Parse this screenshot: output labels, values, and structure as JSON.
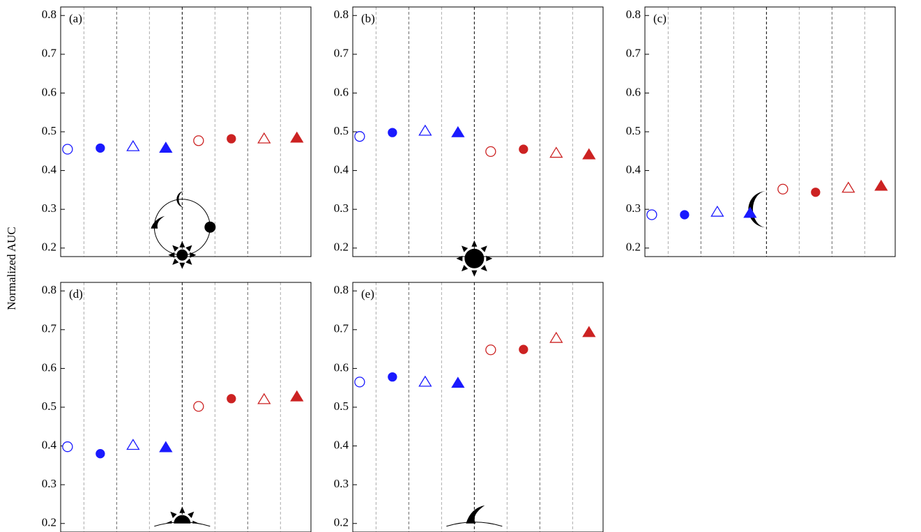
{
  "ylabel": "Normalized AUC",
  "chart_data": [
    {
      "type": "scatter",
      "label": "(a)",
      "x": [
        1,
        2,
        3,
        4,
        5,
        6,
        7,
        8
      ],
      "values": [
        0.455,
        0.458,
        0.462,
        0.458,
        0.477,
        0.482,
        0.482,
        0.484
      ],
      "colors": [
        "#1a1aff",
        "#1a1aff",
        "#1a1aff",
        "#1a1aff",
        "#cc2222",
        "#cc2222",
        "#cc2222",
        "#cc2222"
      ],
      "markers": [
        "circle-open",
        "circle",
        "triangle-open",
        "triangle",
        "circle-open",
        "circle",
        "triangle-open",
        "triangle"
      ],
      "xlim": [
        0.79,
        8.43
      ],
      "ylim": [
        0.178,
        0.822
      ],
      "yticks": [
        0.2,
        0.3,
        0.4,
        0.5,
        0.6,
        0.7,
        0.8
      ]
    },
    {
      "type": "scatter",
      "label": "(b)",
      "x": [
        1,
        2,
        3,
        4,
        5,
        6,
        7,
        8
      ],
      "values": [
        0.488,
        0.498,
        0.502,
        0.498,
        0.449,
        0.455,
        0.445,
        0.441
      ],
      "colors": [
        "#1a1aff",
        "#1a1aff",
        "#1a1aff",
        "#1a1aff",
        "#cc2222",
        "#cc2222",
        "#cc2222",
        "#cc2222"
      ],
      "markers": [
        "circle-open",
        "circle",
        "triangle-open",
        "triangle",
        "circle-open",
        "circle",
        "triangle-open",
        "triangle"
      ],
      "xlim": [
        0.79,
        8.43
      ],
      "ylim": [
        0.178,
        0.822
      ],
      "yticks": [
        0.2,
        0.3,
        0.4,
        0.5,
        0.6,
        0.7,
        0.8
      ]
    },
    {
      "type": "scatter",
      "label": "(c)",
      "x": [
        1,
        2,
        3,
        4,
        5,
        6,
        7,
        8
      ],
      "values": [
        0.286,
        0.286,
        0.293,
        0.29,
        0.352,
        0.344,
        0.355,
        0.36
      ],
      "colors": [
        "#1a1aff",
        "#1a1aff",
        "#1a1aff",
        "#1a1aff",
        "#cc2222",
        "#cc2222",
        "#cc2222",
        "#cc2222"
      ],
      "markers": [
        "circle-open",
        "circle",
        "triangle-open",
        "triangle",
        "circle-open",
        "circle",
        "triangle-open",
        "triangle"
      ],
      "xlim": [
        0.79,
        8.43
      ],
      "ylim": [
        0.178,
        0.822
      ],
      "yticks": [
        0.2,
        0.3,
        0.4,
        0.5,
        0.6,
        0.7,
        0.8
      ]
    },
    {
      "type": "scatter",
      "label": "(d)",
      "x": [
        1,
        2,
        3,
        4,
        5,
        6,
        7,
        8
      ],
      "values": [
        0.398,
        0.38,
        0.402,
        0.396,
        0.502,
        0.522,
        0.52,
        0.527
      ],
      "colors": [
        "#1a1aff",
        "#1a1aff",
        "#1a1aff",
        "#1a1aff",
        "#cc2222",
        "#cc2222",
        "#cc2222",
        "#cc2222"
      ],
      "markers": [
        "circle-open",
        "circle",
        "triangle-open",
        "triangle",
        "circle-open",
        "circle",
        "triangle-open",
        "triangle"
      ],
      "xlim": [
        0.79,
        8.43
      ],
      "ylim": [
        0.178,
        0.822
      ],
      "yticks": [
        0.2,
        0.3,
        0.4,
        0.5,
        0.6,
        0.7,
        0.8
      ]
    },
    {
      "type": "scatter",
      "label": "(e)",
      "x": [
        1,
        2,
        3,
        4,
        5,
        6,
        7,
        8
      ],
      "values": [
        0.565,
        0.578,
        0.565,
        0.562,
        0.648,
        0.649,
        0.678,
        0.693
      ],
      "colors": [
        "#1a1aff",
        "#1a1aff",
        "#1a1aff",
        "#1a1aff",
        "#cc2222",
        "#cc2222",
        "#cc2222",
        "#cc2222"
      ],
      "markers": [
        "circle-open",
        "circle",
        "triangle-open",
        "triangle",
        "circle-open",
        "circle",
        "triangle-open",
        "triangle"
      ],
      "xlim": [
        0.79,
        8.43
      ],
      "ylim": [
        0.178,
        0.822
      ],
      "yticks": [
        0.2,
        0.3,
        0.4,
        0.5,
        0.6,
        0.7,
        0.8
      ]
    }
  ]
}
